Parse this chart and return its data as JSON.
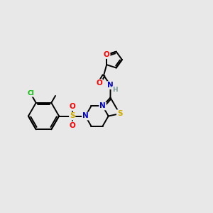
{
  "background_color": "#e8e8e8",
  "fig_width": 3.0,
  "fig_height": 3.0,
  "dpi": 100,
  "atom_colors": {
    "C": "#000000",
    "N": "#0000cc",
    "O": "#ff0000",
    "S": "#ccaa00",
    "Cl": "#00bb00",
    "H": "#7a9a9a"
  },
  "bond_color": "#000000",
  "bond_width": 1.4
}
